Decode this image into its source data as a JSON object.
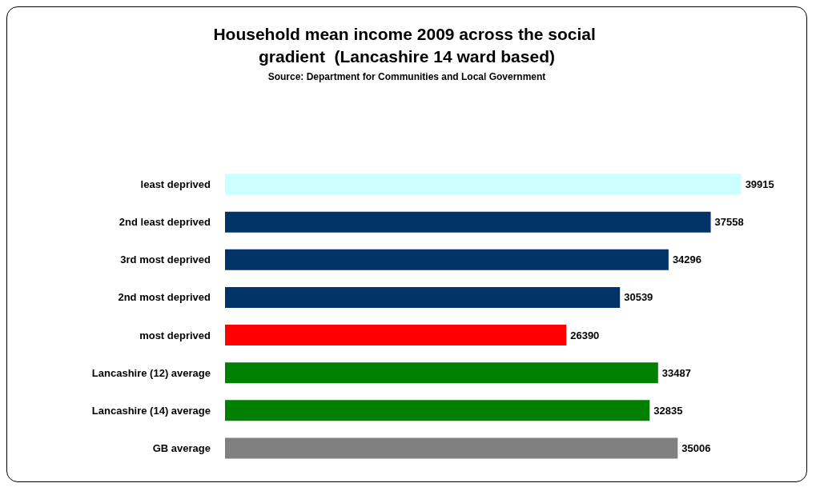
{
  "chart_data": {
    "type": "bar",
    "orientation": "horizontal",
    "title": "Household mean income 2009 across the social gradient  (Lancashire 14 ward based)",
    "subtitle": "Source: Department for Communities and Local Government",
    "categories": [
      "least deprived",
      "2nd least deprived",
      "3rd most deprived",
      "2nd most deprived",
      "most deprived",
      "Lancashire (12) average",
      "Lancashire (14) average",
      "GB average"
    ],
    "values": [
      39915,
      37558,
      34296,
      30539,
      26390,
      33487,
      32835,
      35006
    ],
    "colors": [
      "#ccffff",
      "#003366",
      "#003366",
      "#003366",
      "#ff0000",
      "#008000",
      "#008000",
      "#808080"
    ],
    "data_labels": true
  }
}
